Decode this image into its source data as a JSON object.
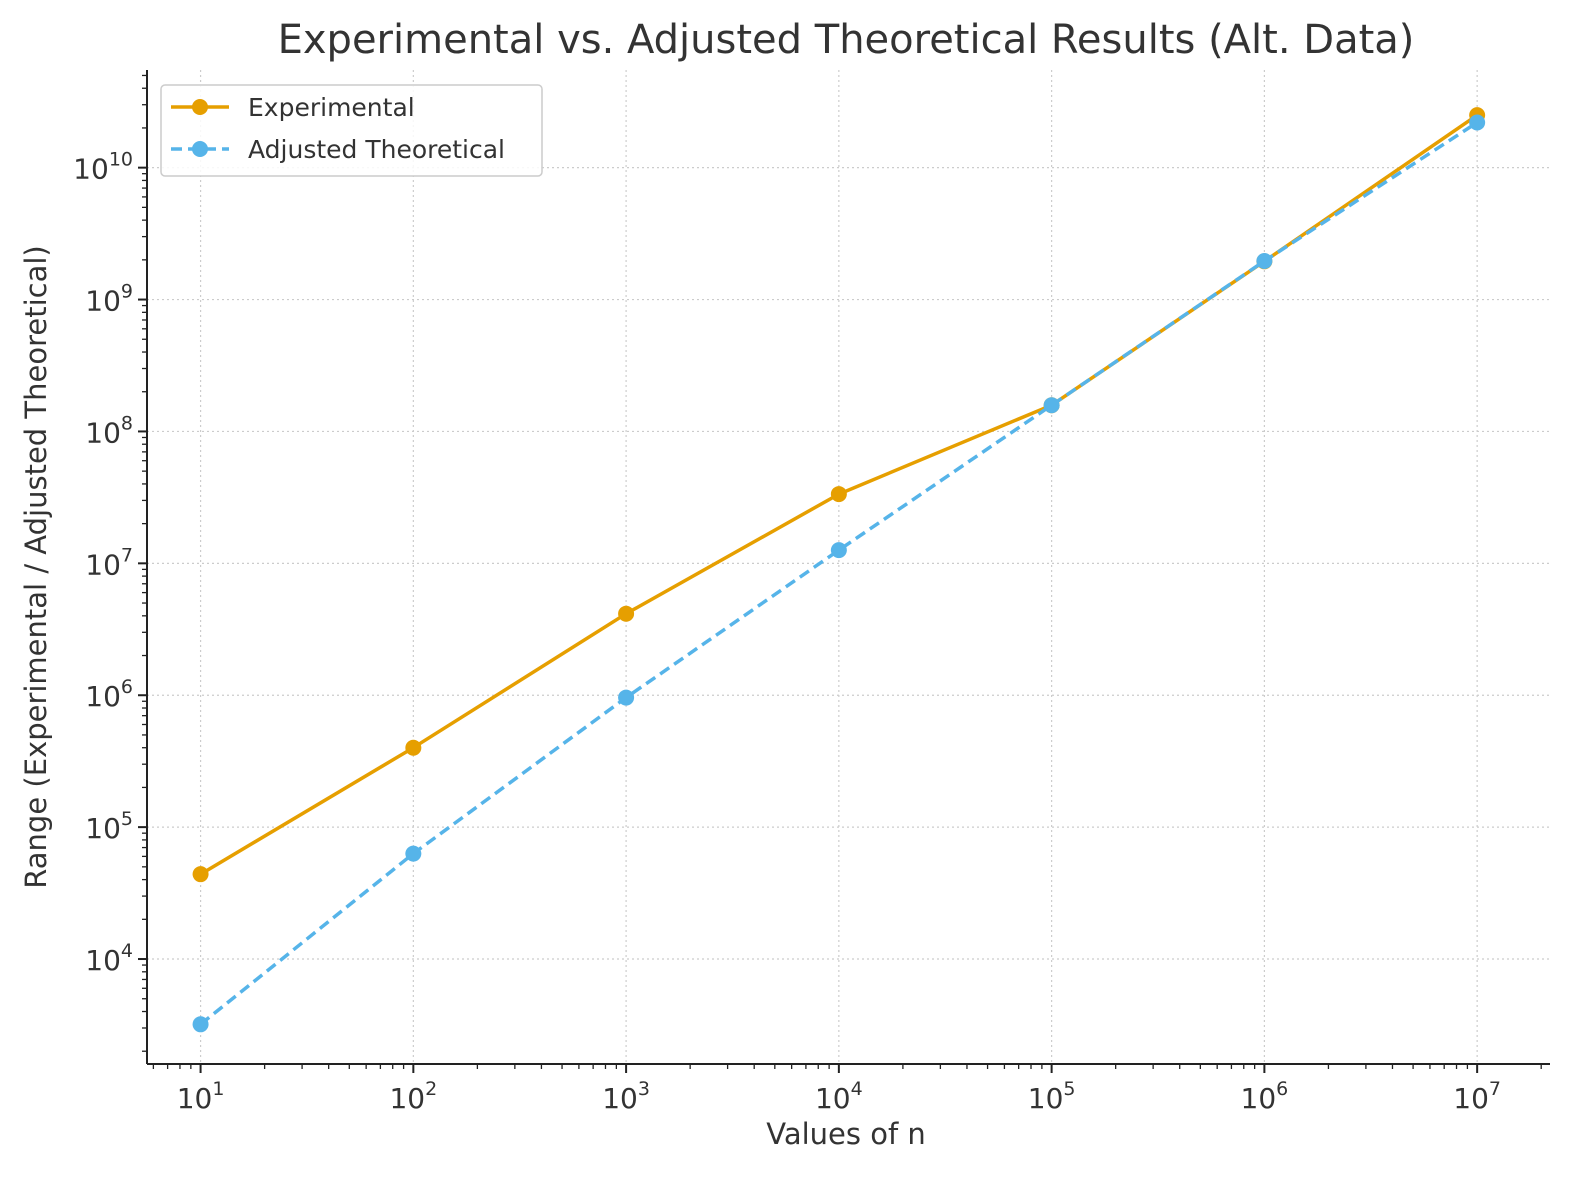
{
  "chart_data": {
    "type": "line",
    "title": "Experimental vs. Adjusted Theoretical Results (Alt. Data)",
    "xlabel": "Values of n",
    "ylabel": "Range (Experimental / Adjusted Theoretical)",
    "xscale": "log",
    "yscale": "log",
    "xlim": [
      5.6,
      22000000
    ],
    "ylim": [
      1600,
      55000000000
    ],
    "x": [
      10,
      100,
      1000,
      10000,
      100000,
      1000000,
      10000000
    ],
    "x_ticks": [
      {
        "base": "10",
        "exp": "1",
        "value": 10
      },
      {
        "base": "10",
        "exp": "2",
        "value": 100
      },
      {
        "base": "10",
        "exp": "3",
        "value": 1000
      },
      {
        "base": "10",
        "exp": "4",
        "value": 10000
      },
      {
        "base": "10",
        "exp": "5",
        "value": 100000
      },
      {
        "base": "10",
        "exp": "6",
        "value": 1000000
      },
      {
        "base": "10",
        "exp": "7",
        "value": 10000000
      }
    ],
    "y_ticks": [
      {
        "base": "10",
        "exp": "4",
        "value": 10000
      },
      {
        "base": "10",
        "exp": "5",
        "value": 100000
      },
      {
        "base": "10",
        "exp": "6",
        "value": 1000000
      },
      {
        "base": "10",
        "exp": "7",
        "value": 10000000
      },
      {
        "base": "10",
        "exp": "8",
        "value": 100000000
      },
      {
        "base": "10",
        "exp": "9",
        "value": 1000000000
      },
      {
        "base": "10",
        "exp": "10",
        "value": 10000000000
      }
    ],
    "grid": true,
    "legend_position": "top-left",
    "series": [
      {
        "name": "Experimental",
        "color": "#E69F00",
        "line_style": "solid",
        "marker": "circle",
        "values": [
          44000,
          400000,
          4150000,
          33500000,
          158000000,
          1950000000,
          25000000000
        ]
      },
      {
        "name": "Adjusted Theoretical",
        "color": "#56B4E9",
        "line_style": "dashed",
        "marker": "circle",
        "values": [
          3200,
          63000,
          960000,
          12600000,
          158000000,
          1960000000,
          22000000000
        ]
      }
    ]
  }
}
